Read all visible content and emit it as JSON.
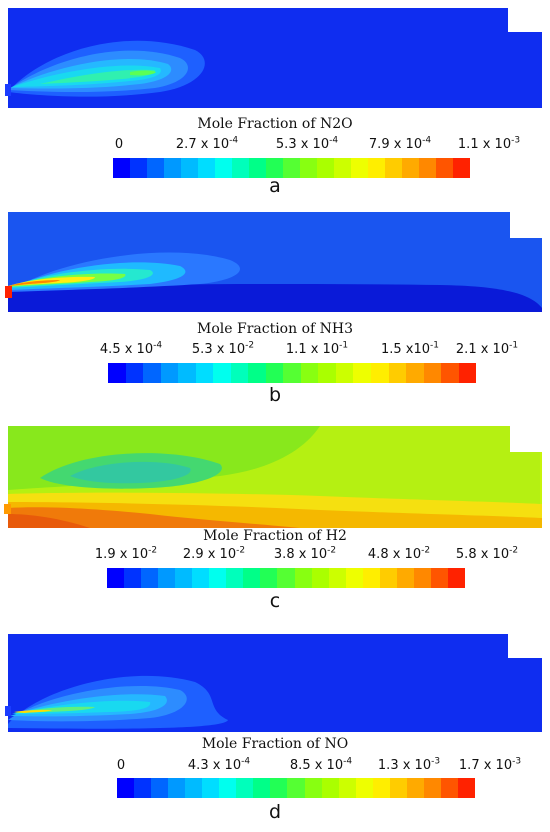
{
  "colors": [
    "#0000ff",
    "#0033ff",
    "#0066ff",
    "#0099ff",
    "#00bbff",
    "#00ddff",
    "#00ffee",
    "#00ffbb",
    "#00ff88",
    "#22ff55",
    "#55ff33",
    "#88ff11",
    "#aaff00",
    "#ccff00",
    "#eeff00",
    "#ffee00",
    "#ffcc00",
    "#ffaa00",
    "#ff8800",
    "#ff5500",
    "#ff2200"
  ],
  "panels": [
    {
      "title": "Mole Fraction of N2O",
      "label": "a",
      "ticks": [
        {
          "base": "0",
          "exp": ""
        },
        {
          "base": "2.7 x 10",
          "exp": "-4"
        },
        {
          "base": "5.3 x 10",
          "exp": "-4"
        },
        {
          "base": "7.9 x 10",
          "exp": "-4"
        },
        {
          "base": "1.1 x 10",
          "exp": "-3"
        }
      ]
    },
    {
      "title": "Mole Fraction of NH3",
      "label": "b",
      "ticks": [
        {
          "base": "4.5 x 10",
          "exp": "-4"
        },
        {
          "base": "5.3 x 10",
          "exp": "-2"
        },
        {
          "base": "1.1 x 10",
          "exp": "-1"
        },
        {
          "base": "1.5 x10",
          "exp": "-1"
        },
        {
          "base": "2.1 x 10",
          "exp": "-1"
        }
      ]
    },
    {
      "title": "Mole Fraction of H2",
      "label": "c",
      "ticks": [
        {
          "base": "1.9 x 10",
          "exp": "-2"
        },
        {
          "base": "2.9 x 10",
          "exp": "-2"
        },
        {
          "base": "3.8 x 10",
          "exp": "-2"
        },
        {
          "base": "4.8 x 10",
          "exp": "-2"
        },
        {
          "base": "5.8 x 10",
          "exp": "-2"
        }
      ]
    },
    {
      "title": "Mole Fraction of NO",
      "label": "d",
      "ticks": [
        {
          "base": "0",
          "exp": ""
        },
        {
          "base": "4.3 x 10",
          "exp": "-4"
        },
        {
          "base": "8.5 x 10",
          "exp": "-4"
        },
        {
          "base": "1.3 x 10",
          "exp": "-3"
        },
        {
          "base": "1.7 x 10",
          "exp": "-3"
        }
      ]
    }
  ]
}
